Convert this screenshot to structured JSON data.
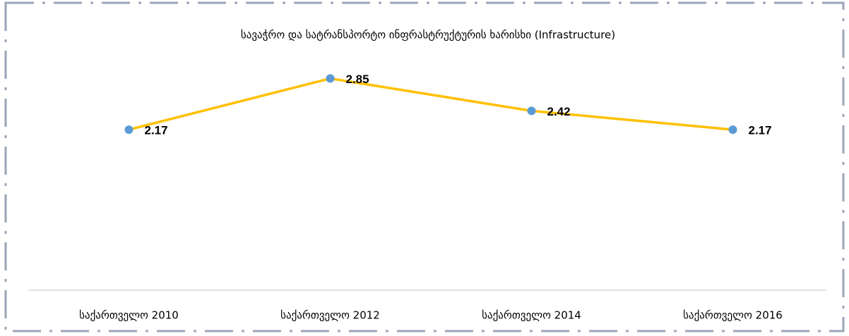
{
  "chart_data": {
    "type": "line",
    "title": "სავაჭრო და სატრანსპორტო ინფრასტრუქტურის ხარისხი (Infrastructure)",
    "categories": [
      "საქართველო 2010",
      "საქართველო 2012",
      "საქართველო 2014",
      "საქართველო 2016"
    ],
    "series": [
      {
        "name": "Infrastructure",
        "color": "#ffc000",
        "marker_color": "#5b9bd5",
        "values": [
          2.17,
          2.85,
          2.42,
          2.17
        ]
      }
    ],
    "ylim": [
      0,
      3.2
    ]
  }
}
